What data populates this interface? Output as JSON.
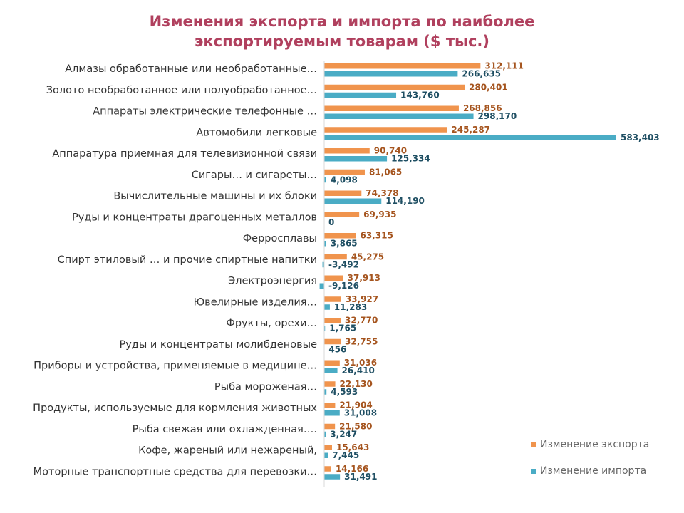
{
  "chart_data": {
    "type": "bar",
    "orientation": "horizontal",
    "title_lines": [
      "Изменения экспорта и импорта по наиболее",
      "экспортируемым товарам ($ тыс.)"
    ],
    "categories": [
      "Алмазы обработанные или необработанные…",
      "Золото необработанное или полуобработанное…",
      "Аппараты электрические телефонные …",
      "Автомобили легковые",
      "Аппаратура приемная для телевизионной связи",
      "Сигары… и сигареты…",
      "Вычислительные машины и их блоки",
      "Руды и концентраты драгоценных металлов",
      "Ферросплавы",
      "Спирт этиловый … и прочие спиртные напитки",
      "Электроэнергия",
      "Ювелирные изделия…",
      "Фрукты, орехи…",
      "Руды и концентраты молибденовые",
      "Приборы и устройства, применяемые в медицине…",
      "Рыба мороженая…",
      "Продукты, используемые для кормления животных",
      "Рыба свежая или охлажденная….",
      "Кофе, жареный или нежареный,",
      "Моторные транспортные средства для перевозки…"
    ],
    "series": [
      {
        "name": "Изменение экспорта",
        "color": "#f0944d",
        "label_color": "#a5541e",
        "values": [
          312111,
          280401,
          268856,
          245287,
          90740,
          81065,
          74378,
          69935,
          63315,
          45275,
          37913,
          33927,
          32770,
          32755,
          31036,
          22130,
          21904,
          21580,
          15643,
          14166
        ],
        "labels": [
          "312,111",
          "280,401",
          "268,856",
          "245,287",
          "90,740",
          "81,065",
          "74,378",
          "69,935",
          "63,315",
          "45,275",
          "37,913",
          "33,927",
          "32,770",
          "32,755",
          "31,036",
          "22,130",
          "21,904",
          "21,580",
          "15,643",
          "14,166"
        ]
      },
      {
        "name": "Изменение импорта",
        "color": "#4aacc5",
        "label_color": "#1f4f63",
        "values": [
          266635,
          143760,
          298170,
          583403,
          125334,
          4098,
          114190,
          0,
          3865,
          -3492,
          -9126,
          11283,
          1765,
          456,
          26410,
          4593,
          31008,
          3247,
          7445,
          31491
        ],
        "labels": [
          "266,635",
          "143,760",
          "298,170",
          "583,403",
          "125,334",
          "4,098",
          "114,190",
          "0",
          "3,865",
          "-3,492",
          "-9,126",
          "11,283",
          "1,765",
          "456",
          "26,410",
          "4,593",
          "31,008",
          "3,247",
          "7,445",
          "31,491"
        ]
      }
    ],
    "xlim": [
      -9126,
      583403
    ],
    "grid": false,
    "legend_position": "bottom-right"
  }
}
